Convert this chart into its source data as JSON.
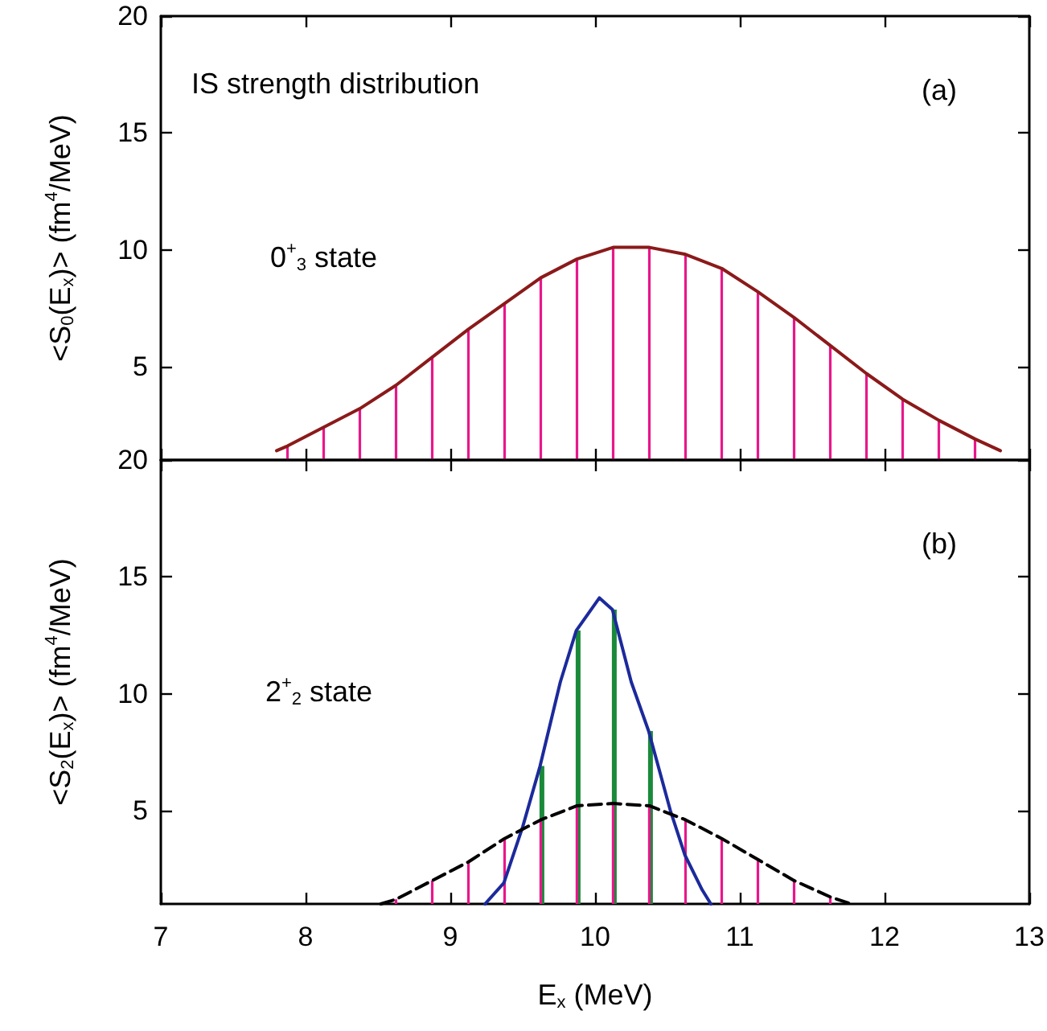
{
  "chart_data": [
    {
      "type": "line",
      "xlim": [
        7,
        13
      ],
      "xticks": [
        7,
        8,
        9,
        10,
        11,
        12,
        13
      ],
      "ylim": [
        1,
        20
      ],
      "yticks": [
        5,
        10,
        15,
        20
      ],
      "tick_labels": "y",
      "ylabel": "<S$_{0}$(E$_{x}$)> (fm$^{4}$/MeV)",
      "marker": "none",
      "grid": false,
      "annotations": [
        "IS strength distribution",
        "(a)",
        "0$^{+}$$_{3}$ state"
      ],
      "series": [
        {
          "type": "bar",
          "color": "#e8178a",
          "x": [
            7.875,
            8.125,
            8.375,
            8.625,
            8.875,
            9.125,
            9.375,
            9.625,
            9.875,
            10.125,
            10.375,
            10.625,
            10.875,
            11.125,
            11.375,
            11.625,
            11.875,
            12.125,
            12.375,
            12.625
          ],
          "values": [
            1.6,
            2.4,
            3.2,
            4.2,
            5.4,
            6.6,
            7.7,
            8.8,
            9.6,
            10.1,
            10.1,
            9.8,
            9.2,
            8.2,
            7.1,
            5.9,
            4.7,
            3.6,
            2.7,
            1.9
          ]
        },
        {
          "color": "#8b1a1a",
          "line_style": "solid",
          "x": [
            7.8,
            7.875,
            8.125,
            8.375,
            8.625,
            8.875,
            9.125,
            9.375,
            9.625,
            9.875,
            10.125,
            10.3,
            10.375,
            10.625,
            10.875,
            11.125,
            11.375,
            11.625,
            11.875,
            12.125,
            12.375,
            12.625,
            12.8
          ],
          "values": [
            1.4,
            1.6,
            2.4,
            3.2,
            4.2,
            5.4,
            6.6,
            7.7,
            8.8,
            9.6,
            10.1,
            10.1,
            10.1,
            9.8,
            9.2,
            8.2,
            7.1,
            5.9,
            4.7,
            3.6,
            2.7,
            1.9,
            1.4
          ]
        }
      ]
    },
    {
      "type": "line",
      "xlim": [
        7,
        13
      ],
      "xticks": [
        7,
        8,
        9,
        10,
        11,
        12,
        13
      ],
      "ylim": [
        1,
        20
      ],
      "yticks": [
        5,
        10,
        15,
        20
      ],
      "xlabel": "E$_{x}$ (MeV)",
      "ylabel": "<S$_{2}$(E$_{x}$)> (fm$^{4}$/MeV)",
      "marker": "none",
      "grid": false,
      "annotations": [
        "(b)",
        "2$^{+}$$_{2}$ state"
      ],
      "series": [
        {
          "type": "bar",
          "color": "#1a8a3a",
          "x": [
            9.625,
            9.875,
            10.125,
            10.375
          ],
          "values": [
            6.9,
            12.7,
            13.6,
            8.4
          ]
        },
        {
          "type": "bar",
          "color": "#e8178a",
          "x": [
            8.625,
            8.875,
            9.125,
            9.375,
            9.625,
            9.875,
            10.125,
            10.375,
            10.625,
            10.875,
            11.125,
            11.375,
            11.625
          ],
          "values": [
            1.2,
            2.0,
            2.8,
            3.8,
            4.6,
            5.2,
            5.3,
            5.2,
            4.6,
            3.8,
            2.9,
            2.0,
            1.3
          ]
        },
        {
          "color": "#1c2a9c",
          "line_style": "solid",
          "x": [
            9.24,
            9.37,
            9.5,
            9.62,
            9.76,
            9.87,
            10.03,
            10.12,
            10.25,
            10.37,
            10.52,
            10.62,
            10.74,
            10.8
          ],
          "values": [
            1,
            1.9,
            4.3,
            6.9,
            10.5,
            12.7,
            14.1,
            13.6,
            10.5,
            8.4,
            5.0,
            3.1,
            1.6,
            1
          ]
        },
        {
          "color": "#000000",
          "line_style": "dashed",
          "x": [
            8.52,
            8.625,
            8.875,
            9.125,
            9.375,
            9.625,
            9.875,
            10.125,
            10.375,
            10.625,
            10.875,
            11.125,
            11.375,
            11.625,
            11.77
          ],
          "values": [
            1,
            1.2,
            2.0,
            2.8,
            3.8,
            4.6,
            5.2,
            5.3,
            5.2,
            4.6,
            3.8,
            2.9,
            2.0,
            1.3,
            1
          ]
        }
      ]
    }
  ]
}
